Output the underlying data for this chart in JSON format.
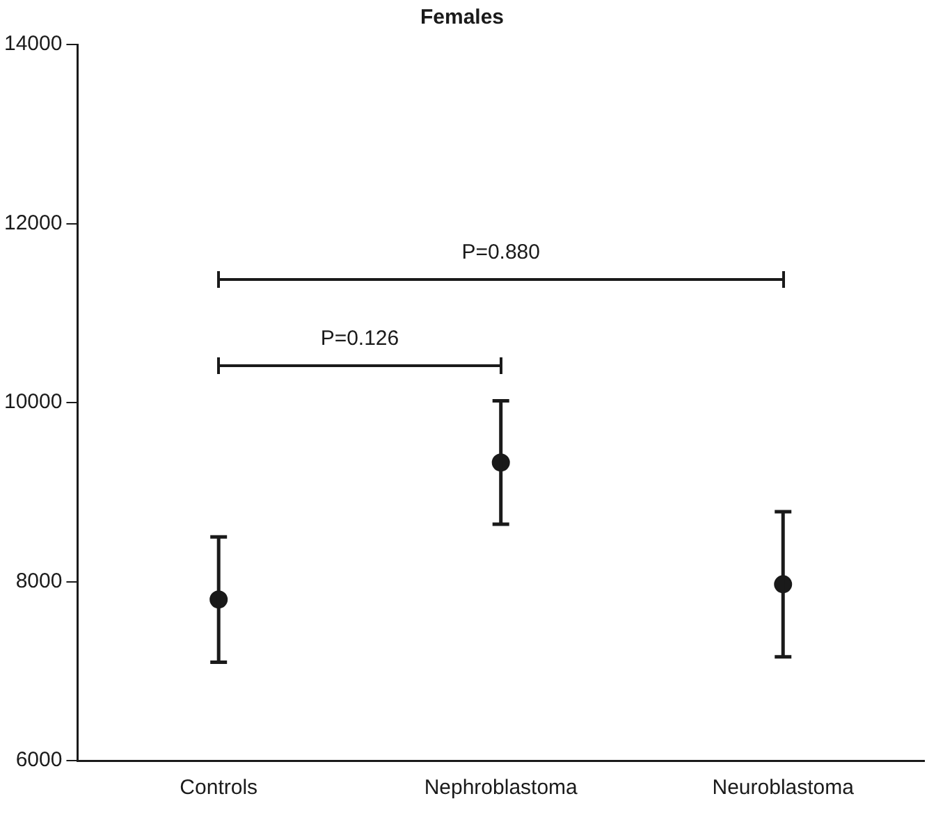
{
  "chart_data": {
    "type": "scatter",
    "title": "Females",
    "categories": [
      "Controls",
      "Nephroblastoma",
      "Neuroblastoma"
    ],
    "values": [
      7800,
      9330,
      7970
    ],
    "errors": [
      [
        7100,
        8500
      ],
      [
        8640,
        10020
      ],
      [
        7160,
        8780
      ]
    ],
    "color": "#1a1a1a",
    "marker": "circle",
    "ylim": [
      6000,
      14000
    ],
    "yticks": [
      6000,
      8000,
      10000,
      12000,
      14000
    ],
    "grid": false,
    "legend": false,
    "annotations": [
      "P=0.126",
      "P=0.880"
    ]
  }
}
